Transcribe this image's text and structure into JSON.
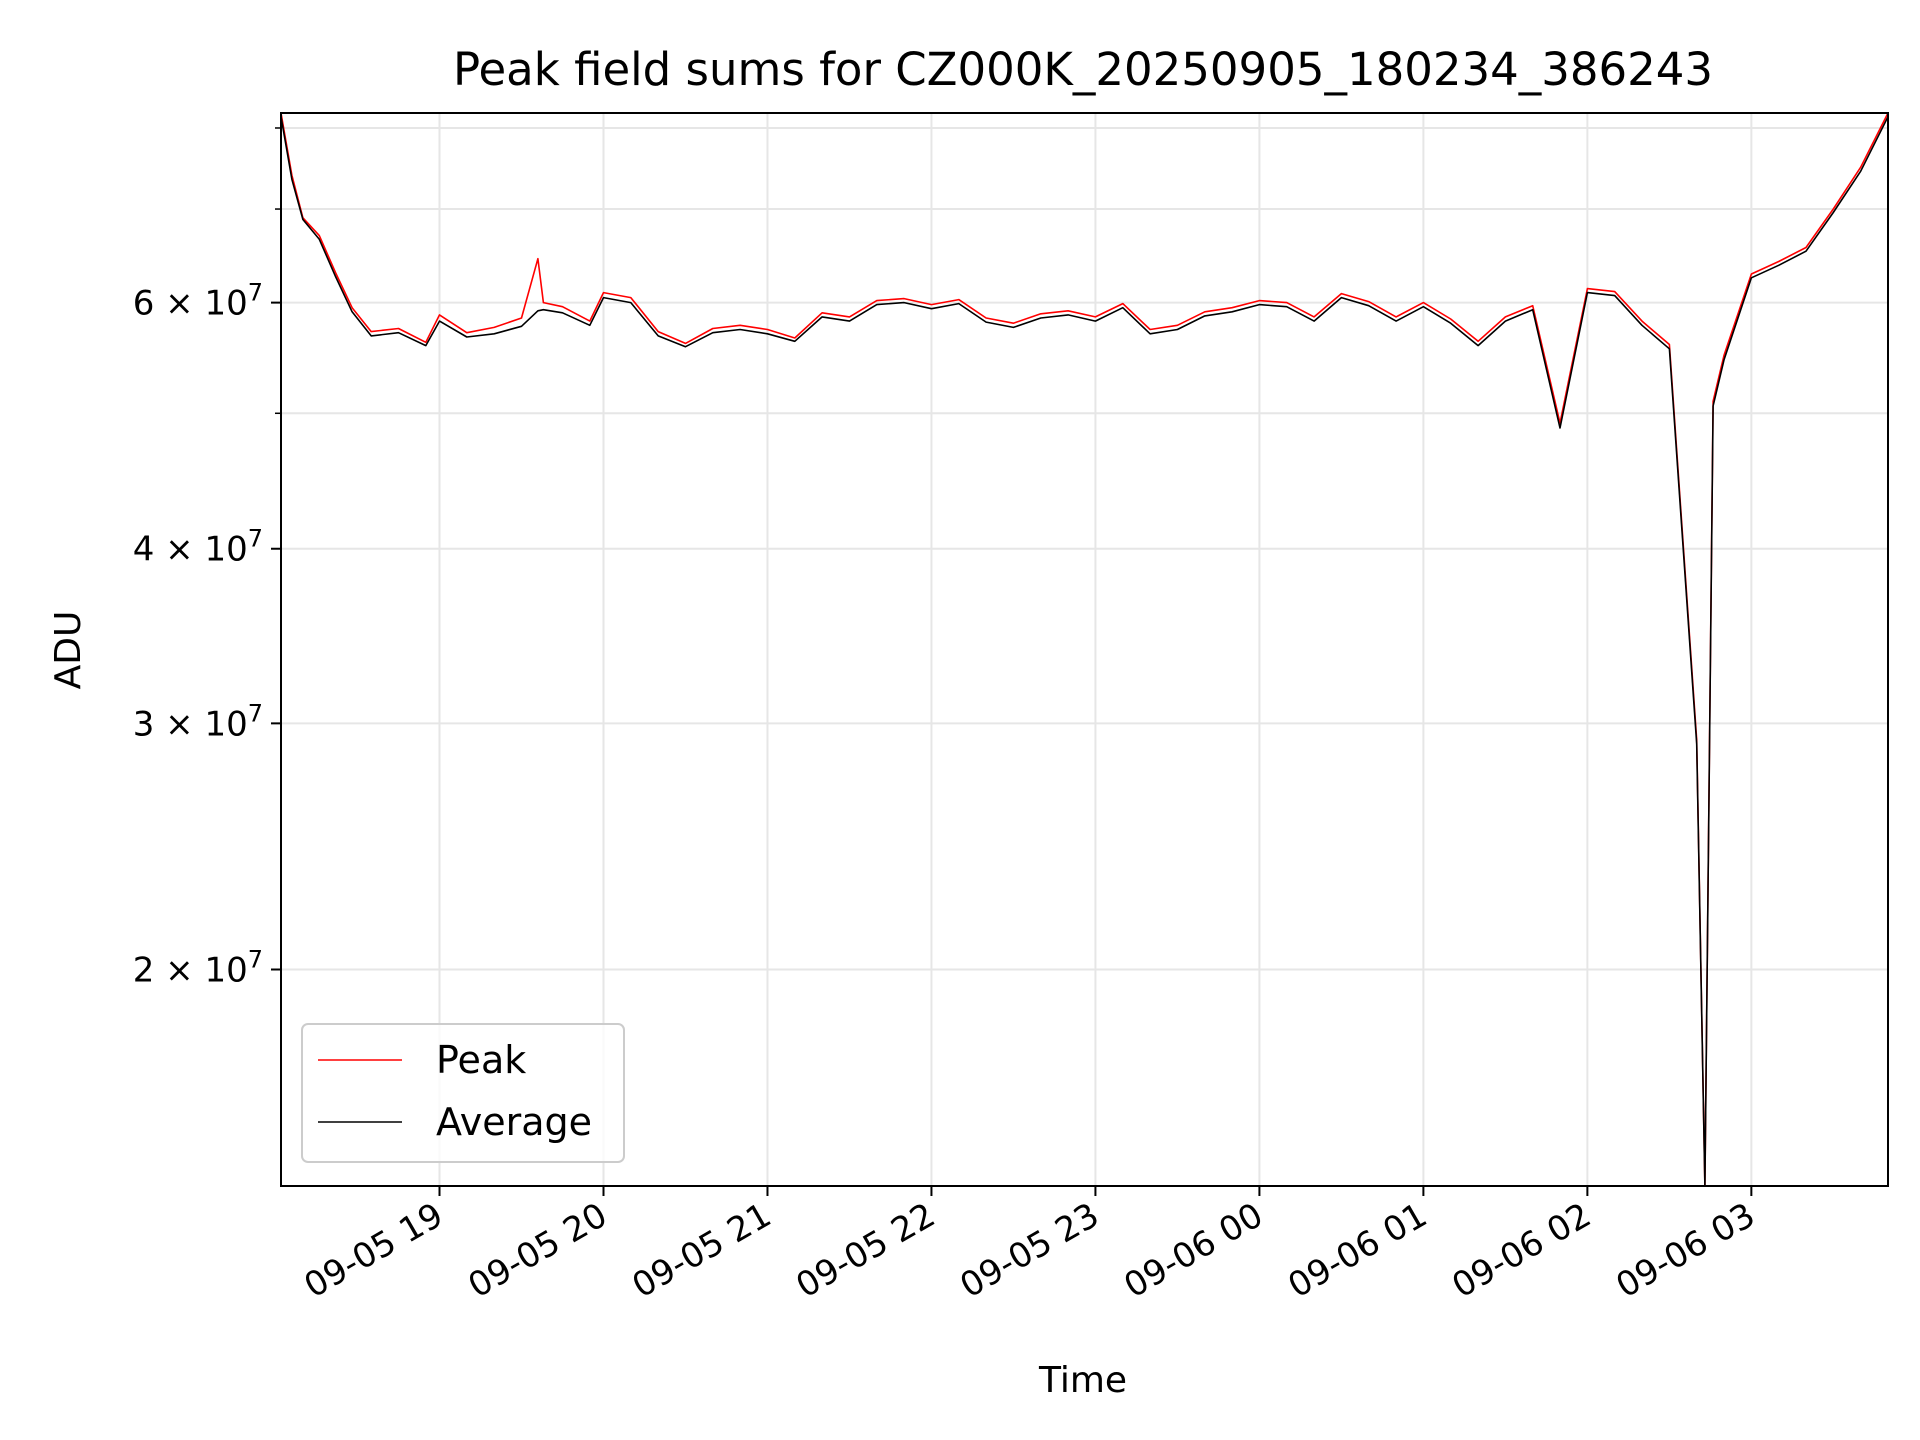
{
  "chart_data": {
    "type": "line",
    "title": "Peak field sums for CZ000K_20250905_180234_386243",
    "xlabel": "Time",
    "ylabel": "ADU",
    "y_scale": "log",
    "xlim": [
      "2025-09-05 18:02",
      "2025-09-06 03:50"
    ],
    "ylim": [
      14000000,
      82000000
    ],
    "grid": true,
    "legend_position": "lower-left",
    "x_ticks": [
      "09-05 19",
      "09-05 20",
      "09-05 21",
      "09-05 22",
      "09-05 23",
      "09-06 00",
      "09-06 01",
      "09-06 02",
      "09-06 03"
    ],
    "y_ticks": [
      {
        "mantissa": "2",
        "exponent": "7",
        "value": 20000000
      },
      {
        "mantissa": "3",
        "exponent": "7",
        "value": 30000000
      },
      {
        "mantissa": "4",
        "exponent": "7",
        "value": 40000000
      },
      {
        "mantissa": "6",
        "exponent": "7",
        "value": 60000000
      }
    ],
    "y_minor_ticks": [
      50000000,
      70000000,
      80000000
    ],
    "series": [
      {
        "name": "Peak",
        "color": "#ff0000",
        "points": [
          [
            "2025-09-05 18:02",
            82000000
          ],
          [
            "2025-09-05 18:06",
            74000000
          ],
          [
            "2025-09-05 18:10",
            69000000
          ],
          [
            "2025-09-05 18:16",
            67000000
          ],
          [
            "2025-09-05 18:22",
            63000000
          ],
          [
            "2025-09-05 18:28",
            59500000
          ],
          [
            "2025-09-05 18:35",
            57200000
          ],
          [
            "2025-09-05 18:45",
            57500000
          ],
          [
            "2025-09-05 18:55",
            56200000
          ],
          [
            "2025-09-05 19:00",
            58800000
          ],
          [
            "2025-09-05 19:10",
            57100000
          ],
          [
            "2025-09-05 19:20",
            57600000
          ],
          [
            "2025-09-05 19:30",
            58500000
          ],
          [
            "2025-09-05 19:36",
            64500000
          ],
          [
            "2025-09-05 19:38",
            60000000
          ],
          [
            "2025-09-05 19:45",
            59600000
          ],
          [
            "2025-09-05 19:55",
            58200000
          ],
          [
            "2025-09-05 20:00",
            61000000
          ],
          [
            "2025-09-05 20:10",
            60500000
          ],
          [
            "2025-09-05 20:20",
            57200000
          ],
          [
            "2025-09-05 20:30",
            56100000
          ],
          [
            "2025-09-05 20:40",
            57500000
          ],
          [
            "2025-09-05 20:50",
            57800000
          ],
          [
            "2025-09-05 21:00",
            57400000
          ],
          [
            "2025-09-05 21:10",
            56600000
          ],
          [
            "2025-09-05 21:20",
            59000000
          ],
          [
            "2025-09-05 21:30",
            58600000
          ],
          [
            "2025-09-05 21:40",
            60200000
          ],
          [
            "2025-09-05 21:50",
            60400000
          ],
          [
            "2025-09-05 22:00",
            59800000
          ],
          [
            "2025-09-05 22:10",
            60300000
          ],
          [
            "2025-09-05 22:20",
            58500000
          ],
          [
            "2025-09-05 22:30",
            58000000
          ],
          [
            "2025-09-05 22:40",
            58900000
          ],
          [
            "2025-09-05 22:50",
            59200000
          ],
          [
            "2025-09-05 23:00",
            58600000
          ],
          [
            "2025-09-05 23:10",
            59900000
          ],
          [
            "2025-09-05 23:20",
            57400000
          ],
          [
            "2025-09-05 23:30",
            57800000
          ],
          [
            "2025-09-05 23:40",
            59100000
          ],
          [
            "2025-09-05 23:50",
            59500000
          ],
          [
            "2025-09-06 00:00",
            60200000
          ],
          [
            "2025-09-06 00:10",
            60000000
          ],
          [
            "2025-09-06 00:20",
            58600000
          ],
          [
            "2025-09-06 00:30",
            60900000
          ],
          [
            "2025-09-06 00:40",
            60100000
          ],
          [
            "2025-09-06 00:50",
            58600000
          ],
          [
            "2025-09-06 01:00",
            60000000
          ],
          [
            "2025-09-06 01:10",
            58400000
          ],
          [
            "2025-09-06 01:20",
            56300000
          ],
          [
            "2025-09-06 01:30",
            58600000
          ],
          [
            "2025-09-06 01:40",
            59700000
          ],
          [
            "2025-09-06 01:50",
            49200000
          ],
          [
            "2025-09-06 02:00",
            61400000
          ],
          [
            "2025-09-06 02:10",
            61100000
          ],
          [
            "2025-09-06 02:20",
            58200000
          ],
          [
            "2025-09-06 02:30",
            56000000
          ],
          [
            "2025-09-06 02:40",
            29200000
          ],
          [
            "2025-09-06 02:43",
            13800000
          ],
          [
            "2025-09-06 02:46",
            51000000
          ],
          [
            "2025-09-06 02:50",
            55000000
          ],
          [
            "2025-09-06 03:00",
            62900000
          ],
          [
            "2025-09-06 03:10",
            64200000
          ],
          [
            "2025-09-06 03:20",
            65700000
          ],
          [
            "2025-09-06 03:30",
            70000000
          ],
          [
            "2025-09-06 03:40",
            75000000
          ],
          [
            "2025-09-06 03:50",
            82000000
          ]
        ]
      },
      {
        "name": "Average",
        "color": "#000000",
        "points": [
          [
            "2025-09-05 18:02",
            81500000
          ],
          [
            "2025-09-05 18:06",
            73500000
          ],
          [
            "2025-09-05 18:10",
            68800000
          ],
          [
            "2025-09-05 18:16",
            66600000
          ],
          [
            "2025-09-05 18:22",
            62600000
          ],
          [
            "2025-09-05 18:28",
            59100000
          ],
          [
            "2025-09-05 18:35",
            56800000
          ],
          [
            "2025-09-05 18:45",
            57100000
          ],
          [
            "2025-09-05 18:55",
            55900000
          ],
          [
            "2025-09-05 19:00",
            58200000
          ],
          [
            "2025-09-05 19:10",
            56700000
          ],
          [
            "2025-09-05 19:20",
            57000000
          ],
          [
            "2025-09-05 19:30",
            57700000
          ],
          [
            "2025-09-05 19:36",
            59200000
          ],
          [
            "2025-09-05 19:38",
            59300000
          ],
          [
            "2025-09-05 19:45",
            59000000
          ],
          [
            "2025-09-05 19:55",
            57800000
          ],
          [
            "2025-09-05 20:00",
            60500000
          ],
          [
            "2025-09-05 20:10",
            60000000
          ],
          [
            "2025-09-05 20:20",
            56800000
          ],
          [
            "2025-09-05 20:30",
            55800000
          ],
          [
            "2025-09-05 20:40",
            57100000
          ],
          [
            "2025-09-05 20:50",
            57400000
          ],
          [
            "2025-09-05 21:00",
            57000000
          ],
          [
            "2025-09-05 21:10",
            56300000
          ],
          [
            "2025-09-05 21:20",
            58600000
          ],
          [
            "2025-09-05 21:30",
            58200000
          ],
          [
            "2025-09-05 21:40",
            59800000
          ],
          [
            "2025-09-05 21:50",
            60000000
          ],
          [
            "2025-09-05 22:00",
            59400000
          ],
          [
            "2025-09-05 22:10",
            59900000
          ],
          [
            "2025-09-05 22:20",
            58100000
          ],
          [
            "2025-09-05 22:30",
            57600000
          ],
          [
            "2025-09-05 22:40",
            58500000
          ],
          [
            "2025-09-05 22:50",
            58800000
          ],
          [
            "2025-09-05 23:00",
            58200000
          ],
          [
            "2025-09-05 23:10",
            59500000
          ],
          [
            "2025-09-05 23:20",
            57000000
          ],
          [
            "2025-09-05 23:30",
            57400000
          ],
          [
            "2025-09-05 23:40",
            58700000
          ],
          [
            "2025-09-05 23:50",
            59100000
          ],
          [
            "2025-09-06 00:00",
            59800000
          ],
          [
            "2025-09-06 00:10",
            59600000
          ],
          [
            "2025-09-06 00:20",
            58200000
          ],
          [
            "2025-09-06 00:30",
            60500000
          ],
          [
            "2025-09-06 00:40",
            59700000
          ],
          [
            "2025-09-06 00:50",
            58200000
          ],
          [
            "2025-09-06 01:00",
            59600000
          ],
          [
            "2025-09-06 01:10",
            58000000
          ],
          [
            "2025-09-06 01:20",
            55900000
          ],
          [
            "2025-09-06 01:30",
            58200000
          ],
          [
            "2025-09-06 01:40",
            59300000
          ],
          [
            "2025-09-06 01:50",
            48800000
          ],
          [
            "2025-09-06 02:00",
            61000000
          ],
          [
            "2025-09-06 02:10",
            60700000
          ],
          [
            "2025-09-06 02:20",
            57800000
          ],
          [
            "2025-09-06 02:30",
            55600000
          ],
          [
            "2025-09-06 02:40",
            29000000
          ],
          [
            "2025-09-06 02:43",
            13700000
          ],
          [
            "2025-09-06 02:46",
            50600000
          ],
          [
            "2025-09-06 02:50",
            54600000
          ],
          [
            "2025-09-06 03:00",
            62500000
          ],
          [
            "2025-09-06 03:10",
            63800000
          ],
          [
            "2025-09-06 03:20",
            65300000
          ],
          [
            "2025-09-06 03:30",
            69600000
          ],
          [
            "2025-09-06 03:40",
            74500000
          ],
          [
            "2025-09-06 03:50",
            81500000
          ]
        ]
      }
    ]
  }
}
